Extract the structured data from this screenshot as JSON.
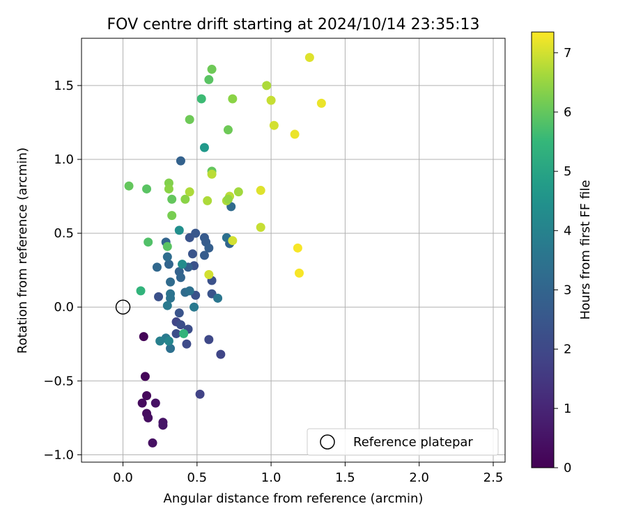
{
  "chart_data": {
    "type": "scatter",
    "title": "FOV centre drift starting at 2024/10/14 23:35:13",
    "xlabel": "Angular distance from reference (arcmin)",
    "ylabel": "Rotation from reference (arcmin)",
    "xlim": [
      -0.28,
      2.58
    ],
    "ylim": [
      -1.05,
      1.82
    ],
    "xticks": [
      0.0,
      0.5,
      1.0,
      1.5,
      2.0,
      2.5
    ],
    "xtick_labels": [
      "0.0",
      "0.5",
      "1.0",
      "1.5",
      "2.0",
      "2.5"
    ],
    "yticks": [
      -1.0,
      -0.5,
      0.0,
      0.5,
      1.0,
      1.5
    ],
    "ytick_labels": [
      "−1.0",
      "−0.5",
      "0.0",
      "0.5",
      "1.0",
      "1.5"
    ],
    "grid": true,
    "colormap": "viridis",
    "colorbar": {
      "label": "Hours from first FF file",
      "range": [
        0,
        7.35
      ],
      "ticks": [
        0,
        1,
        2,
        3,
        4,
        5,
        6,
        7
      ],
      "tick_labels": [
        "0",
        "1",
        "2",
        "3",
        "4",
        "5",
        "6",
        "7"
      ]
    },
    "reference": {
      "label": "Reference platepar",
      "x": 0.0,
      "y": 0.0
    },
    "legend": {
      "position": "lower right",
      "entries": [
        "Reference platepar"
      ]
    },
    "points": [
      {
        "x": 0.14,
        "y": -0.2,
        "h": 0.1
      },
      {
        "x": 0.15,
        "y": -0.47,
        "h": 0.15
      },
      {
        "x": 0.16,
        "y": -0.6,
        "h": 0.2
      },
      {
        "x": 0.13,
        "y": -0.65,
        "h": 0.25
      },
      {
        "x": 0.16,
        "y": -0.72,
        "h": 0.3
      },
      {
        "x": 0.17,
        "y": -0.75,
        "h": 0.35
      },
      {
        "x": 0.2,
        "y": -0.92,
        "h": 0.4
      },
      {
        "x": 0.22,
        "y": -0.65,
        "h": 0.45
      },
      {
        "x": 0.27,
        "y": -0.78,
        "h": 0.5
      },
      {
        "x": 0.27,
        "y": -0.8,
        "h": 0.55
      },
      {
        "x": 0.52,
        "y": -0.59,
        "h": 1.8
      },
      {
        "x": 0.66,
        "y": -0.32,
        "h": 1.9
      },
      {
        "x": 0.58,
        "y": -0.22,
        "h": 2.0
      },
      {
        "x": 0.43,
        "y": -0.25,
        "h": 2.1
      },
      {
        "x": 0.36,
        "y": -0.18,
        "h": 2.2
      },
      {
        "x": 0.44,
        "y": -0.15,
        "h": 2.2
      },
      {
        "x": 0.36,
        "y": -0.1,
        "h": 1.9
      },
      {
        "x": 0.39,
        "y": -0.12,
        "h": 2.2
      },
      {
        "x": 0.38,
        "y": -0.04,
        "h": 2.4
      },
      {
        "x": 0.24,
        "y": 0.07,
        "h": 2.3
      },
      {
        "x": 0.49,
        "y": 0.08,
        "h": 2.3
      },
      {
        "x": 0.6,
        "y": 0.09,
        "h": 2.4
      },
      {
        "x": 0.6,
        "y": 0.18,
        "h": 2.3
      },
      {
        "x": 0.48,
        "y": 0.28,
        "h": 2.3
      },
      {
        "x": 0.47,
        "y": 0.36,
        "h": 2.4
      },
      {
        "x": 0.45,
        "y": 0.47,
        "h": 2.4
      },
      {
        "x": 0.49,
        "y": 0.5,
        "h": 2.5
      },
      {
        "x": 0.55,
        "y": 0.47,
        "h": 2.6
      },
      {
        "x": 0.56,
        "y": 0.44,
        "h": 2.7
      },
      {
        "x": 0.58,
        "y": 0.4,
        "h": 2.8
      },
      {
        "x": 0.55,
        "y": 0.35,
        "h": 2.7
      },
      {
        "x": 0.44,
        "y": 0.27,
        "h": 2.8
      },
      {
        "x": 0.38,
        "y": 0.24,
        "h": 2.9
      },
      {
        "x": 0.39,
        "y": 0.2,
        "h": 3.0
      },
      {
        "x": 0.31,
        "y": 0.29,
        "h": 3.0
      },
      {
        "x": 0.29,
        "y": 0.44,
        "h": 3.0
      },
      {
        "x": 0.23,
        "y": 0.27,
        "h": 3.1
      },
      {
        "x": 0.3,
        "y": 0.34,
        "h": 3.3
      },
      {
        "x": 0.32,
        "y": 0.17,
        "h": 3.2
      },
      {
        "x": 0.32,
        "y": 0.09,
        "h": 3.5
      },
      {
        "x": 0.32,
        "y": 0.06,
        "h": 3.5
      },
      {
        "x": 0.3,
        "y": 0.01,
        "h": 3.7
      },
      {
        "x": 0.42,
        "y": 0.1,
        "h": 3.2
      },
      {
        "x": 0.45,
        "y": 0.11,
        "h": 3.4
      },
      {
        "x": 0.48,
        "y": 0.0,
        "h": 3.7
      },
      {
        "x": 0.64,
        "y": 0.06,
        "h": 3.6
      },
      {
        "x": 0.72,
        "y": 0.43,
        "h": 3.0
      },
      {
        "x": 0.7,
        "y": 0.47,
        "h": 3.4
      },
      {
        "x": 0.73,
        "y": 0.68,
        "h": 3.2
      },
      {
        "x": 0.39,
        "y": 0.99,
        "h": 2.9
      },
      {
        "x": 0.32,
        "y": -0.28,
        "h": 3.4
      },
      {
        "x": 0.29,
        "y": -0.21,
        "h": 3.7
      },
      {
        "x": 0.25,
        "y": -0.23,
        "h": 3.9
      },
      {
        "x": 0.31,
        "y": -0.23,
        "h": 4.1
      },
      {
        "x": 0.4,
        "y": 0.29,
        "h": 4.3
      },
      {
        "x": 0.38,
        "y": 0.52,
        "h": 4.4
      },
      {
        "x": 0.55,
        "y": 1.08,
        "h": 4.7
      },
      {
        "x": 0.41,
        "y": -0.18,
        "h": 5.4
      },
      {
        "x": 0.12,
        "y": 0.11,
        "h": 5.4
      },
      {
        "x": 0.17,
        "y": 0.44,
        "h": 5.8
      },
      {
        "x": 0.3,
        "y": 0.41,
        "h": 5.9
      },
      {
        "x": 0.53,
        "y": 1.41,
        "h": 5.6
      },
      {
        "x": 0.58,
        "y": 1.54,
        "h": 5.9
      },
      {
        "x": 0.6,
        "y": 1.61,
        "h": 6.1
      },
      {
        "x": 0.45,
        "y": 1.27,
        "h": 6.1
      },
      {
        "x": 0.16,
        "y": 0.8,
        "h": 5.9
      },
      {
        "x": 0.04,
        "y": 0.82,
        "h": 6.0
      },
      {
        "x": 0.33,
        "y": 0.73,
        "h": 6.0
      },
      {
        "x": 0.33,
        "y": 0.62,
        "h": 6.2
      },
      {
        "x": 0.42,
        "y": 0.73,
        "h": 6.4
      },
      {
        "x": 0.6,
        "y": 0.92,
        "h": 6.0
      },
      {
        "x": 0.71,
        "y": 1.2,
        "h": 6.1
      },
      {
        "x": 0.74,
        "y": 1.41,
        "h": 6.4
      },
      {
        "x": 0.31,
        "y": 0.84,
        "h": 6.3
      },
      {
        "x": 0.31,
        "y": 0.8,
        "h": 6.4
      },
      {
        "x": 0.45,
        "y": 0.78,
        "h": 6.7
      },
      {
        "x": 0.57,
        "y": 0.72,
        "h": 6.7
      },
      {
        "x": 0.6,
        "y": 0.9,
        "h": 6.8
      },
      {
        "x": 0.7,
        "y": 0.72,
        "h": 6.7
      },
      {
        "x": 0.72,
        "y": 0.75,
        "h": 6.8
      },
      {
        "x": 0.71,
        "y": 0.73,
        "h": 6.5
      },
      {
        "x": 0.78,
        "y": 0.78,
        "h": 6.6
      },
      {
        "x": 0.58,
        "y": 0.22,
        "h": 7.0
      },
      {
        "x": 0.74,
        "y": 0.45,
        "h": 7.0
      },
      {
        "x": 0.93,
        "y": 0.54,
        "h": 6.9
      },
      {
        "x": 0.93,
        "y": 0.79,
        "h": 7.1
      },
      {
        "x": 0.97,
        "y": 1.5,
        "h": 6.7
      },
      {
        "x": 1.0,
        "y": 1.4,
        "h": 6.9
      },
      {
        "x": 1.02,
        "y": 1.23,
        "h": 7.0
      },
      {
        "x": 1.16,
        "y": 1.17,
        "h": 7.2
      },
      {
        "x": 1.26,
        "y": 1.69,
        "h": 7.1
      },
      {
        "x": 1.34,
        "y": 1.38,
        "h": 7.2
      },
      {
        "x": 1.18,
        "y": 0.4,
        "h": 7.3
      },
      {
        "x": 1.19,
        "y": 0.23,
        "h": 7.3
      }
    ]
  }
}
